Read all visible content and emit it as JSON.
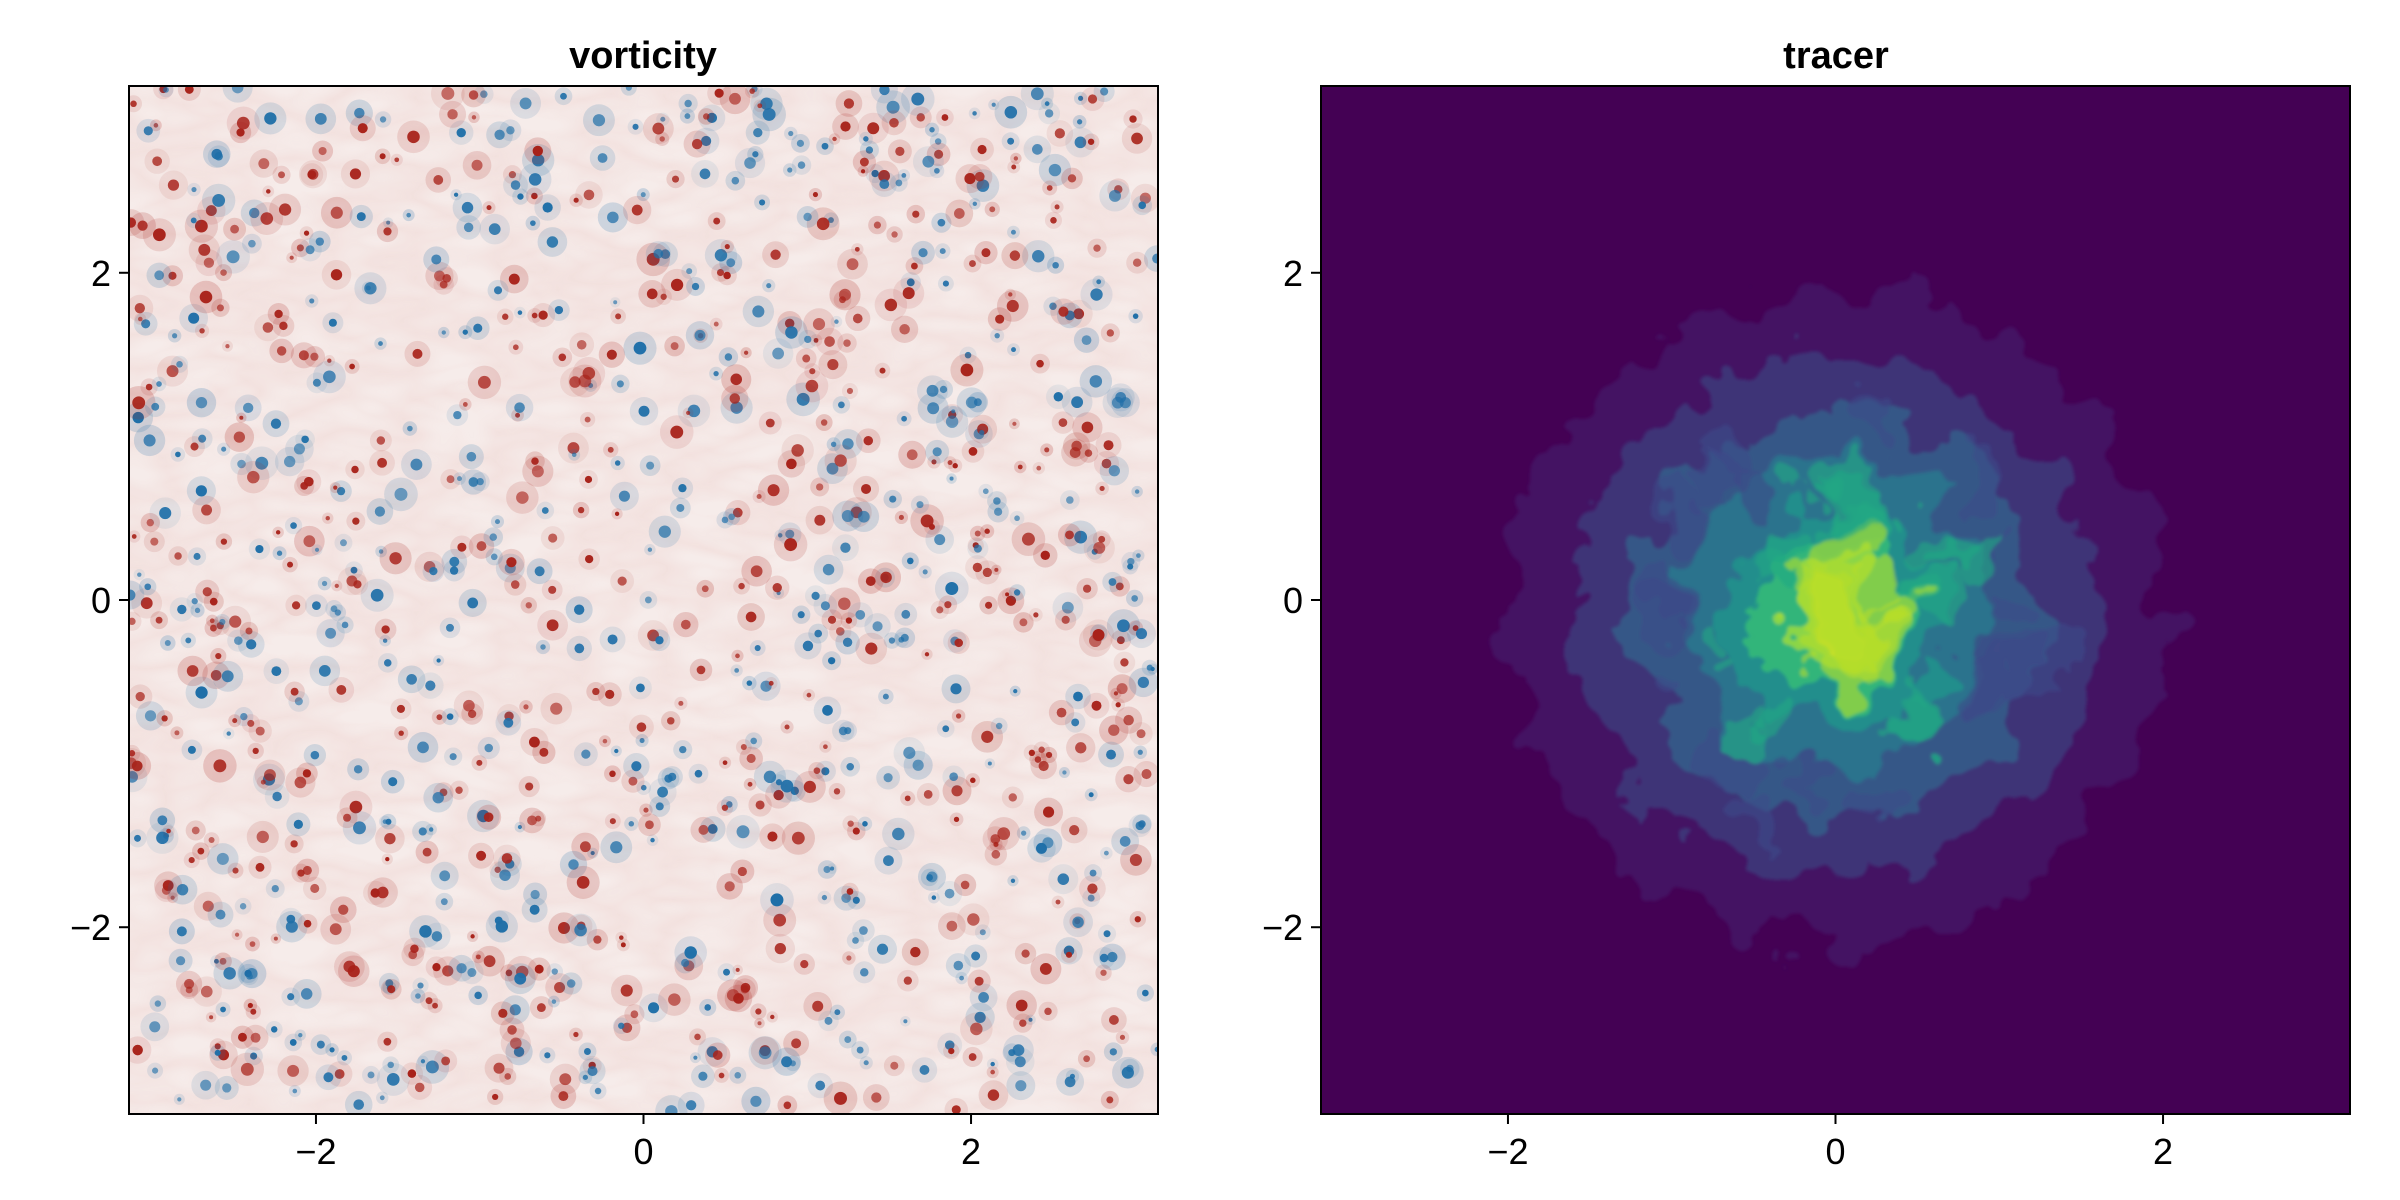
{
  "chart_data": [
    {
      "type": "heatmap",
      "title": "vorticity",
      "xlabel": "",
      "ylabel": "",
      "xlim": [
        -3.14159,
        3.14159
      ],
      "ylim": [
        -3.14159,
        3.14159
      ],
      "xticks": [
        -2,
        0,
        2
      ],
      "yticks": [
        -2,
        0,
        2
      ],
      "xtick_labels": [
        "−2",
        "0",
        "2"
      ],
      "ytick_labels": [
        "−2",
        "0",
        "2"
      ],
      "colormap": "balance (diverging red/white/blue)",
      "colors": {
        "background": "#f6ecea",
        "positive": "#a8221a",
        "negative": "#1f6fa8"
      },
      "field_description": "turbulent field of many small coherent vortices of both signs scattered uniformly across the domain",
      "grid": false
    },
    {
      "type": "heatmap",
      "title": "tracer",
      "xlabel": "",
      "ylabel": "",
      "xlim": [
        -3.14159,
        3.14159
      ],
      "ylim": [
        -3.14159,
        3.14159
      ],
      "xticks": [
        -2,
        0,
        2
      ],
      "yticks": [
        -2,
        0,
        2
      ],
      "xtick_labels": [
        "−2",
        "0",
        "2"
      ],
      "ytick_labels": [
        "−2",
        "0",
        "2"
      ],
      "colormap": "viridis",
      "colors": {
        "background": "#440154",
        "mid": "#2a788e",
        "high": "#fde725"
      },
      "field_description": "tracer blob centered near (0, -0.2) stirred into filaments, extent roughly radius 2",
      "grid": false
    }
  ]
}
